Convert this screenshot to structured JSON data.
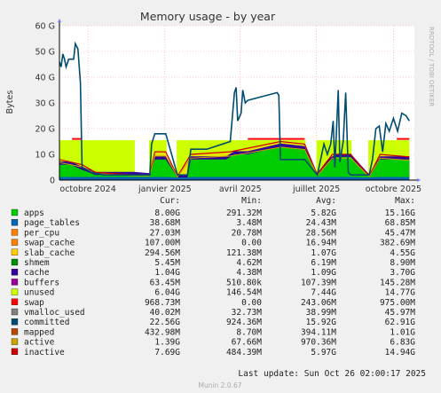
{
  "chart_data": {
    "type": "area",
    "title": "Memory usage - by year",
    "ylabel": "Bytes",
    "side_label": "RRDTOOL / TOBI OETIKER",
    "ylim": [
      0,
      60
    ],
    "y_ticks": [
      {
        "value": 0,
        "label": "0"
      },
      {
        "value": 10,
        "label": "10 G"
      },
      {
        "value": 20,
        "label": "20 G"
      },
      {
        "value": 30,
        "label": "30 G"
      },
      {
        "value": 40,
        "label": "40 G"
      },
      {
        "value": 50,
        "label": "50 G"
      },
      {
        "value": 60,
        "label": "60 G"
      }
    ],
    "x_ticks": [
      {
        "date": "2024-10-01",
        "label": "octobre 2024"
      },
      {
        "date": "2025-01-01",
        "label": "janvier 2025"
      },
      {
        "date": "2025-04-01",
        "label": "avril 2025"
      },
      {
        "date": "2025-07-01",
        "label": "juillet 2025"
      },
      {
        "date": "2025-10-01",
        "label": "octobre 2025"
      }
    ],
    "x_range": [
      "2024-08-28",
      "2025-10-26"
    ],
    "unused_band": [
      {
        "date": "2024-08-28",
        "value": 15.5
      },
      {
        "date": "2025-10-20",
        "value": 15.5
      }
    ],
    "gaps": [
      [
        "2024-11-26",
        "2024-12-13"
      ],
      [
        "2025-01-03",
        "2025-01-15"
      ],
      [
        "2025-06-18",
        "2025-07-01"
      ],
      [
        "2025-08-12",
        "2025-09-01"
      ]
    ],
    "series_committed": [
      {
        "date": "2024-08-28",
        "value": 46
      },
      {
        "date": "2024-08-30",
        "value": 44
      },
      {
        "date": "2024-09-01",
        "value": 49
      },
      {
        "date": "2024-09-03",
        "value": 47
      },
      {
        "date": "2024-09-05",
        "value": 44
      },
      {
        "date": "2024-09-08",
        "value": 47
      },
      {
        "date": "2024-09-14",
        "value": 47
      },
      {
        "date": "2024-09-16",
        "value": 53
      },
      {
        "date": "2024-09-19",
        "value": 51
      },
      {
        "date": "2024-09-22",
        "value": 38
      },
      {
        "date": "2024-09-24",
        "value": 5
      },
      {
        "date": "2024-10-05",
        "value": 3
      },
      {
        "date": "2024-10-20",
        "value": 2
      },
      {
        "date": "2024-11-25",
        "value": 2
      },
      {
        "date": "2024-12-14",
        "value": 2
      },
      {
        "date": "2024-12-16",
        "value": 14
      },
      {
        "date": "2024-12-20",
        "value": 18
      },
      {
        "date": "2025-01-02",
        "value": 18
      },
      {
        "date": "2025-01-16",
        "value": 2
      },
      {
        "date": "2025-01-28",
        "value": 2
      },
      {
        "date": "2025-02-01",
        "value": 12
      },
      {
        "date": "2025-02-05",
        "value": 12
      },
      {
        "date": "2025-02-15",
        "value": 12
      },
      {
        "date": "2025-02-20",
        "value": 12
      },
      {
        "date": "2025-03-20",
        "value": 15
      },
      {
        "date": "2025-03-25",
        "value": 34
      },
      {
        "date": "2025-03-27",
        "value": 36
      },
      {
        "date": "2025-03-29",
        "value": 23
      },
      {
        "date": "2025-04-02",
        "value": 26
      },
      {
        "date": "2025-04-04",
        "value": 35
      },
      {
        "date": "2025-04-07",
        "value": 30
      },
      {
        "date": "2025-04-10",
        "value": 31
      },
      {
        "date": "2025-05-15",
        "value": 34
      },
      {
        "date": "2025-05-17",
        "value": 33
      },
      {
        "date": "2025-05-19",
        "value": 8
      },
      {
        "date": "2025-06-17",
        "value": 8
      },
      {
        "date": "2025-07-02",
        "value": 2
      },
      {
        "date": "2025-07-10",
        "value": 14
      },
      {
        "date": "2025-07-14",
        "value": 10
      },
      {
        "date": "2025-07-18",
        "value": 14
      },
      {
        "date": "2025-07-21",
        "value": 23
      },
      {
        "date": "2025-07-23",
        "value": 5
      },
      {
        "date": "2025-07-27",
        "value": 35
      },
      {
        "date": "2025-07-29",
        "value": 7
      },
      {
        "date": "2025-08-02",
        "value": 15
      },
      {
        "date": "2025-08-05",
        "value": 34
      },
      {
        "date": "2025-08-08",
        "value": 3
      },
      {
        "date": "2025-08-11",
        "value": 2
      },
      {
        "date": "2025-09-02",
        "value": 2
      },
      {
        "date": "2025-09-06",
        "value": 8
      },
      {
        "date": "2025-09-10",
        "value": 20
      },
      {
        "date": "2025-09-14",
        "value": 21
      },
      {
        "date": "2025-09-18",
        "value": 11
      },
      {
        "date": "2025-09-22",
        "value": 22
      },
      {
        "date": "2025-09-26",
        "value": 19
      },
      {
        "date": "2025-10-01",
        "value": 24
      },
      {
        "date": "2025-10-06",
        "value": 19
      },
      {
        "date": "2025-10-11",
        "value": 26
      },
      {
        "date": "2025-10-16",
        "value": 25
      },
      {
        "date": "2025-10-20",
        "value": 23
      }
    ],
    "series_apps_top": [
      {
        "date": "2024-08-28",
        "value": 6
      },
      {
        "date": "2024-09-10",
        "value": 6
      },
      {
        "date": "2024-09-24",
        "value": 4
      },
      {
        "date": "2024-10-10",
        "value": 2
      },
      {
        "date": "2024-11-25",
        "value": 2
      },
      {
        "date": "2024-12-14",
        "value": 1.5
      },
      {
        "date": "2024-12-20",
        "value": 8
      },
      {
        "date": "2025-01-02",
        "value": 8
      },
      {
        "date": "2025-01-16",
        "value": 1
      },
      {
        "date": "2025-01-28",
        "value": 1
      },
      {
        "date": "2025-02-01",
        "value": 8
      },
      {
        "date": "2025-03-15",
        "value": 8
      },
      {
        "date": "2025-03-25",
        "value": 10
      },
      {
        "date": "2025-04-10",
        "value": 10
      },
      {
        "date": "2025-05-19",
        "value": 13
      },
      {
        "date": "2025-06-17",
        "value": 12
      },
      {
        "date": "2025-07-02",
        "value": 1.5
      },
      {
        "date": "2025-07-15",
        "value": 7
      },
      {
        "date": "2025-07-25",
        "value": 9
      },
      {
        "date": "2025-08-11",
        "value": 9
      },
      {
        "date": "2025-09-02",
        "value": 1
      },
      {
        "date": "2025-09-15",
        "value": 8
      },
      {
        "date": "2025-10-20",
        "value": 8
      }
    ],
    "series_inactive_line": [
      {
        "date": "2024-08-28",
        "value": 8
      },
      {
        "date": "2024-09-24",
        "value": 6
      },
      {
        "date": "2024-10-10",
        "value": 3
      },
      {
        "date": "2024-11-25",
        "value": 2
      },
      {
        "date": "2024-12-14",
        "value": 2
      },
      {
        "date": "2024-12-20",
        "value": 11
      },
      {
        "date": "2025-01-02",
        "value": 11
      },
      {
        "date": "2025-01-16",
        "value": 1.5
      },
      {
        "date": "2025-02-01",
        "value": 10
      },
      {
        "date": "2025-03-20",
        "value": 11
      },
      {
        "date": "2025-05-19",
        "value": 15
      },
      {
        "date": "2025-06-17",
        "value": 14
      },
      {
        "date": "2025-07-02",
        "value": 2
      },
      {
        "date": "2025-07-20",
        "value": 10
      },
      {
        "date": "2025-08-11",
        "value": 10
      },
      {
        "date": "2025-09-02",
        "value": 1.5
      },
      {
        "date": "2025-09-15",
        "value": 10
      },
      {
        "date": "2025-10-20",
        "value": 9
      }
    ],
    "swap_lines": [
      {
        "from": "2024-09-12",
        "to": "2024-09-24",
        "value": 16
      },
      {
        "from": "2025-04-10",
        "to": "2025-06-17",
        "value": 16
      },
      {
        "from": "2025-10-05",
        "to": "2025-10-20",
        "value": 16
      }
    ],
    "legend_headers": [
      "Cur:",
      "Min:",
      "Avg:",
      "Max:"
    ],
    "legend": [
      {
        "name": "apps",
        "color": "#00cc00",
        "cur": "8.00G",
        "min": "291.32M",
        "avg": "5.82G",
        "max": "15.16G"
      },
      {
        "name": "page_tables",
        "color": "#0066b3",
        "cur": "38.68M",
        "min": "3.48M",
        "avg": "24.43M",
        "max": "68.85M"
      },
      {
        "name": "per_cpu",
        "color": "#ff8000",
        "cur": "27.03M",
        "min": "20.78M",
        "avg": "28.56M",
        "max": "45.47M"
      },
      {
        "name": "swap_cache",
        "color": "#ff8000",
        "cur": "107.00M",
        "min": "0.00",
        "avg": "16.94M",
        "max": "382.69M"
      },
      {
        "name": "slab_cache",
        "color": "#ffcc00",
        "cur": "294.56M",
        "min": "121.38M",
        "avg": "1.07G",
        "max": "4.55G"
      },
      {
        "name": "shmem",
        "color": "#008f00",
        "cur": "5.45M",
        "min": "4.62M",
        "avg": "6.19M",
        "max": "8.90M"
      },
      {
        "name": "cache",
        "color": "#330099",
        "cur": "1.04G",
        "min": "4.38M",
        "avg": "1.09G",
        "max": "3.70G"
      },
      {
        "name": "buffers",
        "color": "#990099",
        "cur": "63.45M",
        "min": "510.80k",
        "avg": "107.39M",
        "max": "145.28M"
      },
      {
        "name": "unused",
        "color": "#ccff00",
        "cur": "6.04G",
        "min": "146.54M",
        "avg": "7.44G",
        "max": "14.77G"
      },
      {
        "name": "swap",
        "color": "#ff0000",
        "cur": "968.73M",
        "min": "0.00",
        "avg": "243.06M",
        "max": "975.00M"
      },
      {
        "name": "vmalloc_used",
        "color": "#808080",
        "cur": "40.02M",
        "min": "32.73M",
        "avg": "38.99M",
        "max": "45.97M"
      },
      {
        "name": "committed",
        "color": "#004b71",
        "cur": "22.56G",
        "min": "924.36M",
        "avg": "15.92G",
        "max": "62.91G"
      },
      {
        "name": "mapped",
        "color": "#b84700",
        "cur": "432.98M",
        "min": "8.70M",
        "avg": "394.11M",
        "max": "1.01G"
      },
      {
        "name": "active",
        "color": "#c9a300",
        "cur": "1.39G",
        "min": "67.66M",
        "avg": "970.36M",
        "max": "6.83G"
      },
      {
        "name": "inactive",
        "color": "#cc0000",
        "cur": "7.69G",
        "min": "484.39M",
        "avg": "5.97G",
        "max": "14.94G"
      }
    ],
    "last_update": "Last update:  Sun Oct 26 02:00:17 2025",
    "footer": "Munin 2.0.67"
  }
}
